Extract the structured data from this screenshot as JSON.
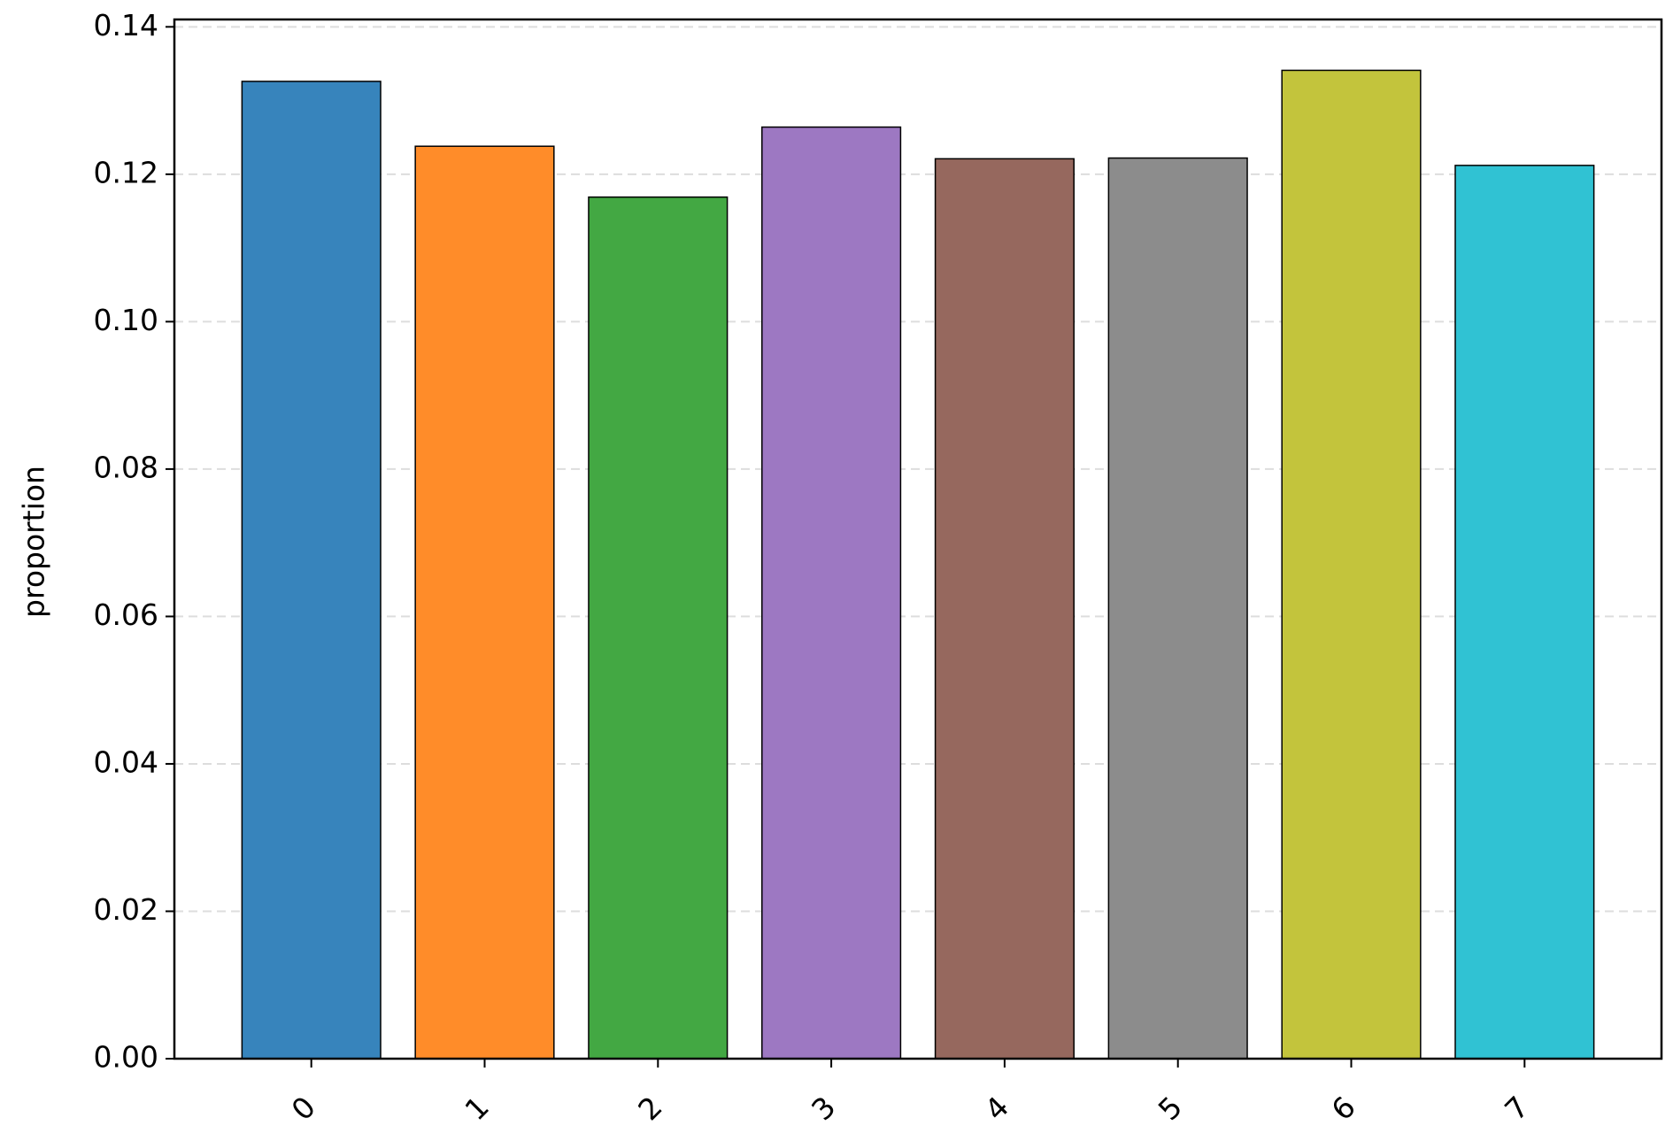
{
  "chart_data": {
    "type": "bar",
    "y_label": "proportion",
    "categories": [
      "0",
      "1",
      "2",
      "3",
      "4",
      "5",
      "6",
      "7"
    ],
    "values": [
      0.1326,
      0.1238,
      0.1169,
      0.1264,
      0.1221,
      0.1222,
      0.1341,
      0.1212
    ],
    "colors": [
      "#3784bc",
      "#ff8c29",
      "#43a843",
      "#9d78c2",
      "#96685e",
      "#8c8c8c",
      "#c3c43c",
      "#30c2d3"
    ],
    "ylim": [
      0,
      0.141
    ],
    "yticks": [
      {
        "value": 0,
        "label": "0.00"
      },
      {
        "value": 0.02,
        "label": "0.02"
      },
      {
        "value": 0.04,
        "label": "0.04"
      },
      {
        "value": 0.06,
        "label": "0.06"
      },
      {
        "value": 0.08,
        "label": "0.08"
      },
      {
        "value": 0.1,
        "label": "0.10"
      },
      {
        "value": 0.12,
        "label": "0.12"
      },
      {
        "value": 0.14,
        "label": "0.14"
      }
    ],
    "grid": true
  }
}
